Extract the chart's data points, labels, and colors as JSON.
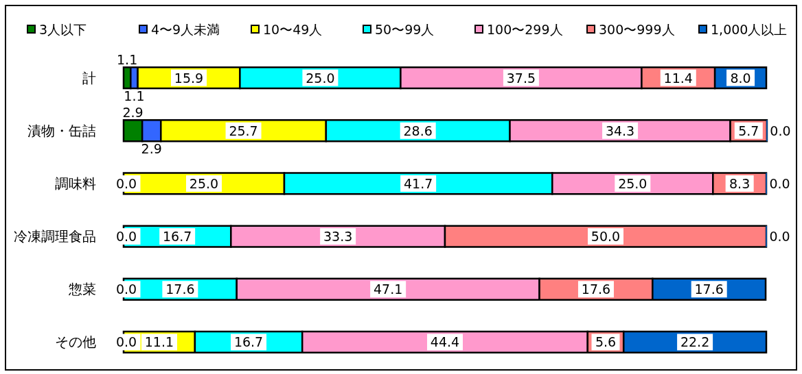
{
  "chart_data": {
    "type": "bar",
    "orientation": "horizontal",
    "stacked": true,
    "legend": "top",
    "xlim": [
      0,
      100
    ],
    "categories": [
      "計",
      "漬物・缶詰",
      "調味料",
      "冷凍調理食品",
      "惣菜",
      "その他"
    ],
    "series": [
      {
        "name": "3人以下",
        "color": "#008000",
        "values": [
          1.1,
          2.9,
          0.0,
          0.0,
          0.0,
          0.0
        ],
        "value_labels": [
          "1.1",
          "2.9",
          "0.0",
          "0.0",
          "0.0",
          "0.0"
        ]
      },
      {
        "name": "4〜9人未満",
        "color": "#3366ff",
        "values": [
          1.1,
          2.9,
          0.0,
          0.0,
          0.0,
          0.0
        ],
        "value_labels": [
          "1.1",
          "2.9",
          null,
          null,
          null,
          null
        ]
      },
      {
        "name": "10〜49人",
        "color": "#ffff00",
        "values": [
          15.9,
          25.7,
          25.0,
          0.0,
          0.0,
          11.1
        ],
        "value_labels": [
          "15.9",
          "25.7",
          "25.0",
          null,
          null,
          "11.1"
        ]
      },
      {
        "name": "50〜99人",
        "color": "#00ffff",
        "values": [
          25.0,
          28.6,
          41.7,
          16.7,
          17.6,
          16.7
        ],
        "value_labels": [
          "25.0",
          "28.6",
          "41.7",
          "16.7",
          "17.6",
          "16.7"
        ]
      },
      {
        "name": "100〜299人",
        "color": "#ff99cc",
        "values": [
          37.5,
          34.3,
          25.0,
          33.3,
          47.1,
          44.4
        ],
        "value_labels": [
          "37.5",
          "34.3",
          "25.0",
          "33.3",
          "47.1",
          "44.4"
        ]
      },
      {
        "name": "300〜999人",
        "color": "#ff8080",
        "values": [
          11.4,
          5.7,
          8.3,
          50.0,
          17.6,
          5.6
        ],
        "value_labels": [
          "11.4",
          "5.7",
          "8.3",
          "50.0",
          "17.6",
          "5.6"
        ]
      },
      {
        "name": "1,000人以上",
        "color": "#0066cc",
        "values": [
          8.0,
          0.0,
          0.0,
          0.0,
          17.6,
          22.2
        ],
        "value_labels": [
          "8.0",
          "0.0",
          "0.0",
          "0.0",
          "17.6",
          "22.2"
        ]
      }
    ]
  }
}
